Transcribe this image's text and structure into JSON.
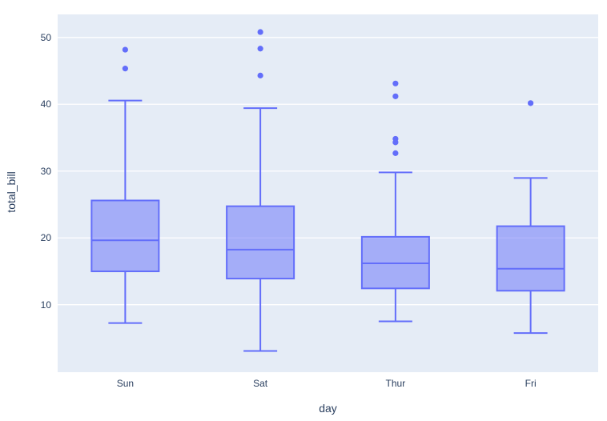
{
  "figure": {
    "paper_bgcolor": "#ffffff",
    "plot_bgcolor": "#e5ecf6",
    "grid_color": "#ffffff",
    "box_line_color": "#636efa",
    "box_fill_color": "rgba(99,110,250,0.5)",
    "marker_color": "#636efa",
    "text_color": "#2a3f5f"
  },
  "chart_data": {
    "type": "box",
    "title": "",
    "xlabel": "day",
    "ylabel": "total_bill",
    "categories": [
      "Sun",
      "Sat",
      "Thur",
      "Fri"
    ],
    "y_ticks": [
      10,
      20,
      30,
      40,
      50
    ],
    "ylim": [
      -0.1,
      53.45
    ],
    "grid": true,
    "legend": "none",
    "series": [
      {
        "name": "Sun",
        "lower_fence": 7.25,
        "q1": 14.99,
        "median": 19.63,
        "q3": 25.6,
        "upper_fence": 40.55,
        "outliers": [
          45.35,
          48.17
        ]
      },
      {
        "name": "Sat",
        "lower_fence": 3.07,
        "q1": 13.91,
        "median": 18.24,
        "q3": 24.74,
        "upper_fence": 39.42,
        "outliers": [
          44.3,
          48.33,
          50.81
        ]
      },
      {
        "name": "Thur",
        "lower_fence": 7.51,
        "q1": 12.44,
        "median": 16.2,
        "q3": 20.16,
        "upper_fence": 29.8,
        "outliers": [
          32.68,
          34.3,
          34.83,
          41.19,
          43.11
        ]
      },
      {
        "name": "Fri",
        "lower_fence": 5.75,
        "q1": 12.09,
        "median": 15.38,
        "q3": 21.75,
        "upper_fence": 28.97,
        "outliers": [
          40.17
        ]
      }
    ]
  }
}
